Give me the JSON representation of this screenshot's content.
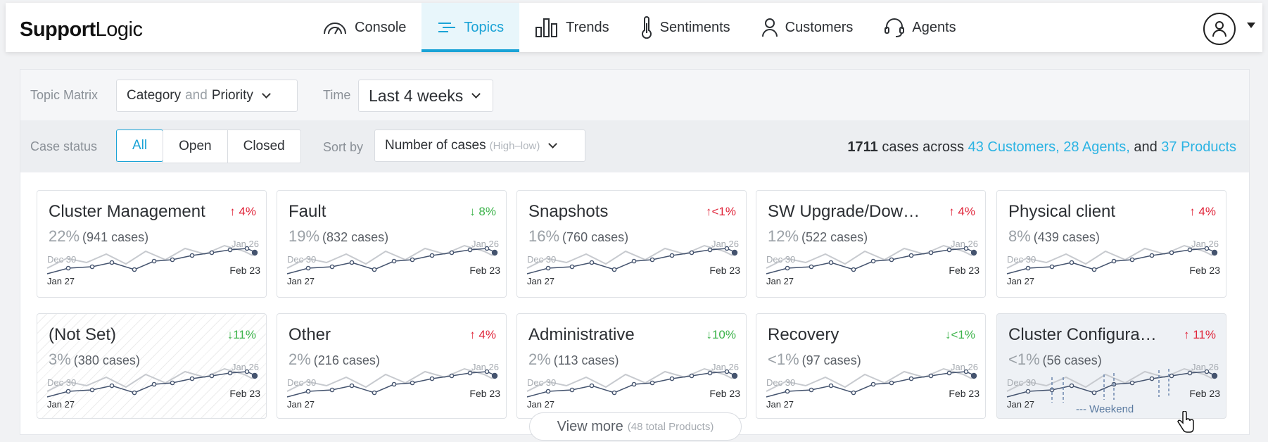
{
  "brand": {
    "bold": "Support",
    "light": "Logic"
  },
  "nav": [
    {
      "label": "Console",
      "icon": "gauge-icon",
      "active": false
    },
    {
      "label": "Topics",
      "icon": "topics-icon",
      "active": true
    },
    {
      "label": "Trends",
      "icon": "bar-chart-icon",
      "active": false
    },
    {
      "label": "Sentiments",
      "icon": "thermometer-icon",
      "active": false
    },
    {
      "label": "Customers",
      "icon": "person-icon",
      "active": false
    },
    {
      "label": "Agents",
      "icon": "headset-icon",
      "active": false
    }
  ],
  "filters": {
    "topic_matrix_label": "Topic Matrix",
    "topic_matrix_value_a": "Category",
    "topic_matrix_and": "and",
    "topic_matrix_value_b": "Priority",
    "time_label": "Time",
    "time_value": "Last 4 weeks",
    "case_status_label": "Case status",
    "case_status_options": [
      "All",
      "Open",
      "Closed"
    ],
    "case_status_selected": "All",
    "sort_label": "Sort by",
    "sort_value": "Number of cases",
    "sort_hint": "(High–low)"
  },
  "summary": {
    "count": "1711",
    "text1": "cases across",
    "customers": "43 Customers,",
    "agents": "28 Agents,",
    "and": "and",
    "products": "37 Products"
  },
  "spark_labels": {
    "prev_start": "Dec 30",
    "prev_end": "Jan 26",
    "start": "Jan 27",
    "end": "Feb 23"
  },
  "cards": [
    {
      "title": "Cluster Management",
      "trend": "↑ 4%",
      "dir": "up",
      "pct": "22%",
      "cases": "(941 cases)"
    },
    {
      "title": "Fault",
      "trend": "↓ 8%",
      "dir": "down",
      "pct": "19%",
      "cases": "(832 cases)"
    },
    {
      "title": "Snapshots",
      "trend": "↑<1%",
      "dir": "up",
      "pct": "16%",
      "cases": "(760 cases)"
    },
    {
      "title": "SW Upgrade/Dow…",
      "trend": "↑ 4%",
      "dir": "up",
      "pct": "12%",
      "cases": "(522 cases)"
    },
    {
      "title": "Physical client",
      "trend": "↑ 4%",
      "dir": "up",
      "pct": "8%",
      "cases": "(439 cases)"
    },
    {
      "title": "(Not Set)",
      "trend": "↓11%",
      "dir": "down",
      "pct": "3%",
      "cases": "(380 cases)"
    },
    {
      "title": "Other",
      "trend": "↑ 4%",
      "dir": "up",
      "pct": "2%",
      "cases": "(216 cases)"
    },
    {
      "title": "Administrative",
      "trend": "↓10%",
      "dir": "down",
      "pct": "2%",
      "cases": "(113 cases)"
    },
    {
      "title": "Recovery",
      "trend": "↓<1%",
      "dir": "down",
      "pct": "<1%",
      "cases": "(97 cases)"
    },
    {
      "title": "Cluster Configura…",
      "trend": "↑ 11%",
      "dir": "up",
      "pct": "<1%",
      "cases": "(56 cases)"
    }
  ],
  "weekend_legend": "--- Weekend",
  "view_more": {
    "label": "View more",
    "hint": "(48 total Products)"
  },
  "colors": {
    "accent": "#1aa3d6",
    "up": "#e0253a",
    "down": "#3cb34a",
    "spark_current": "#44536e",
    "spark_prev": "#c7cacf"
  }
}
